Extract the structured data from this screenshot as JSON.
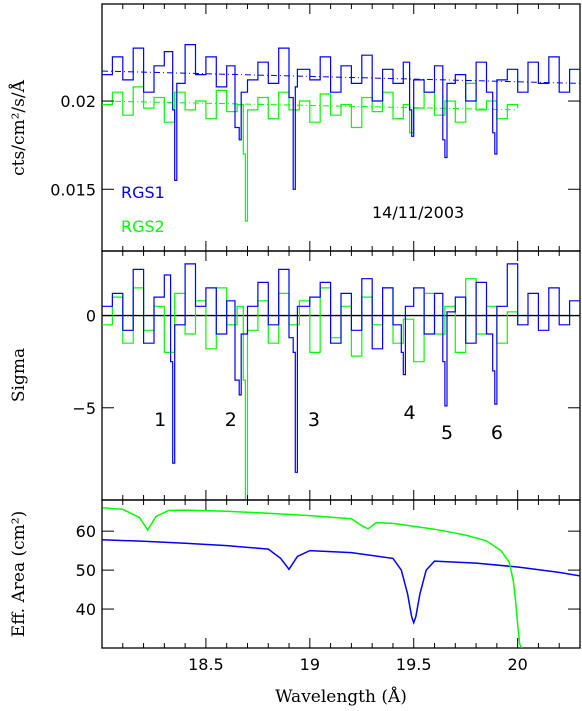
{
  "chart_data": [
    {
      "type": "line",
      "panel": "flux",
      "ylabel": "cts/cm²/s/Å",
      "xlim": [
        18.0,
        20.3
      ],
      "ylim": [
        0.0115,
        0.0255
      ],
      "yticks": [
        0.015,
        0.02
      ],
      "ytick_labels": [
        "0.015",
        "0.02"
      ],
      "date": "14/11/2003",
      "colors": {
        "RGS1": "#0000ff",
        "RGS2": "#00ff00"
      },
      "series": [
        {
          "name": "RGS1",
          "color": "#0000ff",
          "style": "step",
          "model": [
            [
              18.0,
              0.0217
            ],
            [
              20.3,
              0.021
            ]
          ],
          "x": [
            18.0,
            18.05,
            18.1,
            18.15,
            18.2,
            18.25,
            18.3,
            18.34,
            18.35,
            18.36,
            18.4,
            18.45,
            18.5,
            18.55,
            18.6,
            18.64,
            18.66,
            18.67,
            18.7,
            18.75,
            18.8,
            18.85,
            18.9,
            18.92,
            18.93,
            18.94,
            19.0,
            19.05,
            19.1,
            19.15,
            19.2,
            19.25,
            19.3,
            19.35,
            19.4,
            19.45,
            19.48,
            19.49,
            19.5,
            19.55,
            19.6,
            19.64,
            19.65,
            19.66,
            19.7,
            19.75,
            19.8,
            19.85,
            19.88,
            19.89,
            19.9,
            19.95,
            20.0,
            20.05,
            20.1,
            20.15,
            20.2,
            20.25,
            20.3
          ],
          "y": [
            0.0215,
            0.0225,
            0.0212,
            0.023,
            0.0205,
            0.022,
            0.0228,
            0.0195,
            0.0155,
            0.021,
            0.0232,
            0.0215,
            0.0225,
            0.0208,
            0.022,
            0.0185,
            0.0178,
            0.0205,
            0.0212,
            0.0222,
            0.021,
            0.023,
            0.0202,
            0.015,
            0.0208,
            0.0218,
            0.0212,
            0.0225,
            0.0205,
            0.022,
            0.021,
            0.0226,
            0.02,
            0.0218,
            0.021,
            0.0222,
            0.0195,
            0.018,
            0.0212,
            0.0205,
            0.022,
            0.0178,
            0.0168,
            0.021,
            0.0215,
            0.02,
            0.0222,
            0.0205,
            0.0182,
            0.017,
            0.0212,
            0.0218,
            0.0205,
            0.0222,
            0.021,
            0.0225,
            0.0205,
            0.0218,
            0.021
          ]
        },
        {
          "name": "RGS2",
          "color": "#00ff00",
          "style": "step",
          "model": [
            [
              18.0,
              0.02
            ],
            [
              20.0,
              0.0195
            ]
          ],
          "x": [
            18.0,
            18.05,
            18.1,
            18.15,
            18.2,
            18.25,
            18.3,
            18.35,
            18.4,
            18.45,
            18.5,
            18.55,
            18.6,
            18.65,
            18.68,
            18.69,
            18.7,
            18.75,
            18.8,
            18.85,
            18.9,
            18.95,
            19.0,
            19.05,
            19.1,
            19.15,
            19.2,
            19.25,
            19.3,
            19.35,
            19.4,
            19.45,
            19.48,
            19.5,
            19.55,
            19.6,
            19.65,
            19.7,
            19.75,
            19.8,
            19.85,
            19.9,
            19.95,
            20.0
          ],
          "y": [
            0.0198,
            0.0205,
            0.0192,
            0.0208,
            0.0196,
            0.0202,
            0.0188,
            0.0205,
            0.0195,
            0.02,
            0.019,
            0.0206,
            0.0194,
            0.0198,
            0.017,
            0.0132,
            0.0195,
            0.0202,
            0.019,
            0.0205,
            0.0195,
            0.02,
            0.0188,
            0.0204,
            0.0192,
            0.0198,
            0.0185,
            0.0202,
            0.0194,
            0.0205,
            0.019,
            0.0198,
            0.0182,
            0.0196,
            0.0205,
            0.0192,
            0.02,
            0.0188,
            0.021,
            0.0195,
            0.02,
            0.019,
            0.0198,
            0.0196
          ]
        }
      ]
    },
    {
      "type": "line",
      "panel": "residuals",
      "ylabel": "Sigma",
      "xlim": [
        18.0,
        20.3
      ],
      "ylim": [
        -10.0,
        3.5
      ],
      "yticks": [
        0,
        -5
      ],
      "ytick_labels": [
        "0",
        "−5"
      ],
      "annotations": [
        {
          "text": "1",
          "x": 18.28,
          "y": -6.0
        },
        {
          "text": "2",
          "x": 18.62,
          "y": -6.0
        },
        {
          "text": "3",
          "x": 19.02,
          "y": -6.0
        },
        {
          "text": "4",
          "x": 19.48,
          "y": -5.6
        },
        {
          "text": "5",
          "x": 19.66,
          "y": -6.7
        },
        {
          "text": "6",
          "x": 19.9,
          "y": -6.7
        }
      ],
      "series": [
        {
          "name": "RGS1",
          "color": "#0000ff",
          "style": "step",
          "x": [
            18.0,
            18.05,
            18.1,
            18.15,
            18.2,
            18.25,
            18.3,
            18.33,
            18.34,
            18.35,
            18.4,
            18.45,
            18.5,
            18.55,
            18.6,
            18.64,
            18.66,
            18.67,
            18.7,
            18.75,
            18.8,
            18.85,
            18.9,
            18.92,
            18.93,
            18.94,
            19.0,
            19.05,
            19.1,
            19.15,
            19.2,
            19.25,
            19.3,
            19.35,
            19.4,
            19.44,
            19.45,
            19.46,
            19.5,
            19.55,
            19.6,
            19.64,
            19.65,
            19.66,
            19.7,
            19.75,
            19.8,
            19.85,
            19.88,
            19.89,
            19.9,
            19.95,
            20.0,
            20.05,
            20.1,
            20.15,
            20.2,
            20.25,
            20.3
          ],
          "y": [
            0.5,
            1.2,
            -0.8,
            2.5,
            -1.5,
            1.0,
            2.2,
            -2.5,
            -8.0,
            -0.5,
            2.8,
            0.5,
            1.5,
            -1.0,
            0.8,
            -3.5,
            -4.3,
            -1.0,
            0.5,
            1.8,
            -0.5,
            2.5,
            -1.2,
            -2.0,
            -8.5,
            0.5,
            1.0,
            1.8,
            -1.5,
            1.2,
            -0.8,
            2.0,
            -1.8,
            1.5,
            -0.5,
            -2.0,
            -3.2,
            0.5,
            1.5,
            -1.0,
            1.2,
            -2.5,
            -4.9,
            0.2,
            1.0,
            -1.5,
            1.8,
            -1.0,
            -3.0,
            -4.8,
            0.5,
            2.8,
            -0.5,
            1.2,
            -0.8,
            1.5,
            -0.5,
            0.8,
            0.2
          ]
        },
        {
          "name": "RGS2",
          "color": "#00ff00",
          "style": "step",
          "x": [
            18.0,
            18.05,
            18.1,
            18.15,
            18.2,
            18.25,
            18.3,
            18.35,
            18.4,
            18.45,
            18.5,
            18.55,
            18.6,
            18.65,
            18.68,
            18.69,
            18.7,
            18.75,
            18.8,
            18.85,
            18.9,
            18.95,
            19.0,
            19.05,
            19.1,
            19.15,
            19.2,
            19.25,
            19.3,
            19.35,
            19.4,
            19.45,
            19.5,
            19.55,
            19.6,
            19.65,
            19.7,
            19.75,
            19.8,
            19.85,
            19.9,
            19.95,
            20.0
          ],
          "y": [
            -0.5,
            1.0,
            -1.5,
            1.5,
            -0.8,
            0.5,
            -2.0,
            1.2,
            -1.0,
            0.8,
            -1.8,
            1.5,
            -0.5,
            0.5,
            -3.5,
            -10.0,
            -0.8,
            0.8,
            -1.5,
            1.2,
            -0.5,
            0.8,
            -2.0,
            1.5,
            -1.2,
            0.5,
            -2.2,
            1.0,
            -0.5,
            1.5,
            -1.5,
            -0.2,
            -2.5,
            1.2,
            -1.0,
            0.5,
            -2.0,
            2.0,
            -1.0,
            0.5,
            -1.5,
            0.2,
            -0.5
          ]
        }
      ]
    },
    {
      "type": "line",
      "panel": "effective-area",
      "ylabel": "Eff. Area (cm²)",
      "xlabel": "Wavelength (Å)",
      "xlim": [
        18.0,
        20.3
      ],
      "ylim": [
        30,
        68
      ],
      "xticks": [
        18.5,
        19,
        19.5,
        20
      ],
      "xtick_labels": [
        "18.5",
        "19",
        "19.5",
        "20"
      ],
      "yticks": [
        40,
        50,
        60
      ],
      "ytick_labels": [
        "40",
        "50",
        "60"
      ],
      "series": [
        {
          "name": "RGS1",
          "color": "#0000ff",
          "x": [
            18.0,
            18.2,
            18.4,
            18.6,
            18.8,
            18.86,
            18.9,
            18.94,
            19.0,
            19.2,
            19.4,
            19.44,
            19.47,
            19.49,
            19.5,
            19.51,
            19.53,
            19.56,
            19.6,
            19.8,
            20.0,
            20.2,
            20.3
          ],
          "y": [
            57.8,
            57.4,
            56.9,
            56.3,
            55.4,
            53.0,
            50.2,
            53.5,
            55.0,
            54.5,
            53.0,
            50.0,
            44.0,
            38.0,
            36.5,
            38.0,
            44.0,
            50.0,
            52.3,
            51.8,
            50.8,
            49.4,
            48.5
          ]
        },
        {
          "name": "RGS2",
          "color": "#00ff00",
          "x": [
            18.0,
            18.1,
            18.18,
            18.22,
            18.26,
            18.32,
            18.4,
            18.6,
            18.8,
            19.0,
            19.2,
            19.25,
            19.28,
            19.32,
            19.4,
            19.6,
            19.75,
            19.85,
            19.92,
            19.96,
            19.98,
            19.99,
            20.0,
            20.01,
            20.02
          ],
          "y": [
            66.0,
            65.6,
            63.5,
            60.3,
            63.8,
            65.3,
            65.4,
            65.1,
            64.6,
            64.0,
            63.2,
            61.4,
            60.6,
            62.2,
            62.0,
            60.5,
            59.0,
            57.5,
            55.0,
            52.0,
            47.0,
            42.0,
            36.0,
            31.0,
            30.0
          ]
        }
      ]
    }
  ]
}
